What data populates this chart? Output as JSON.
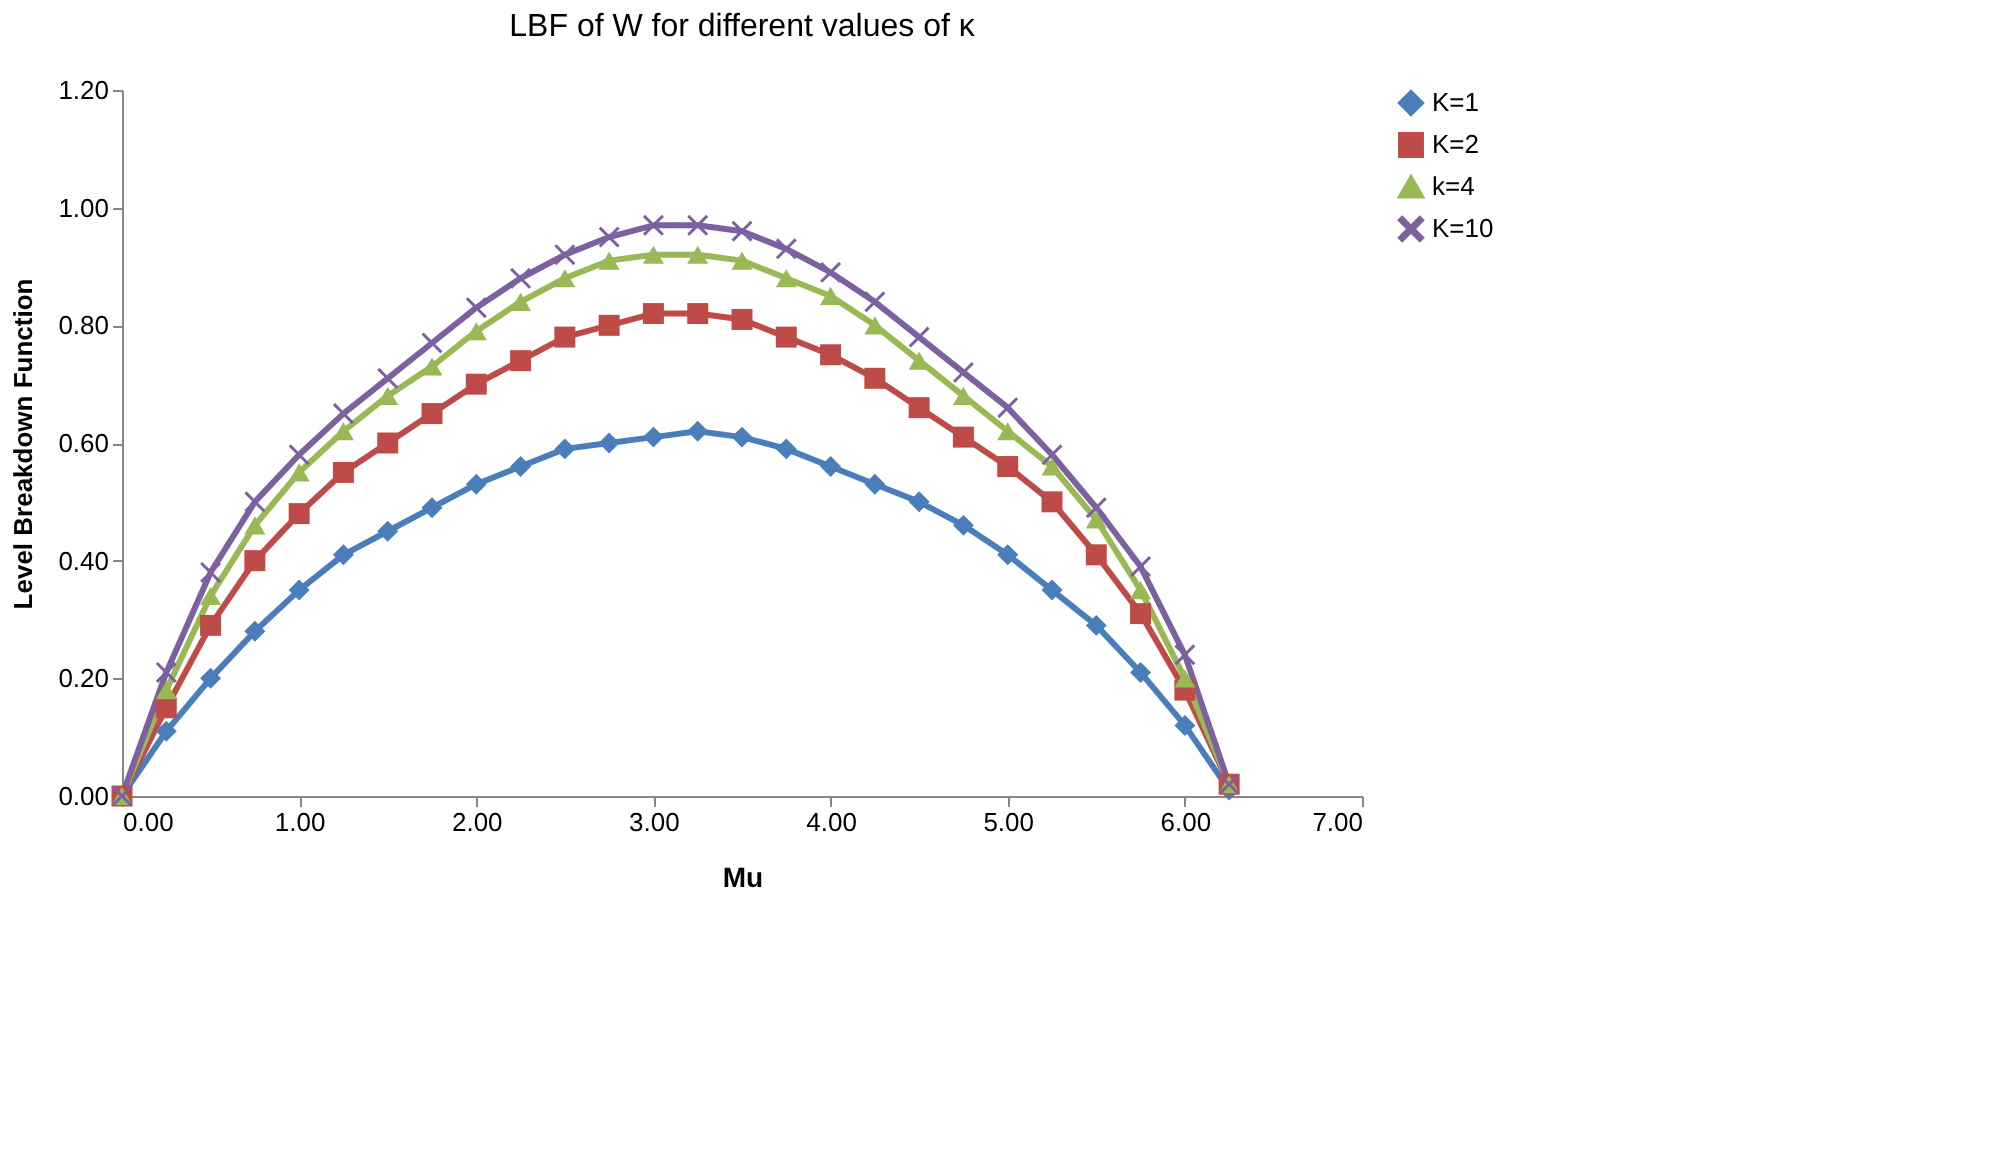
{
  "chart_data": {
    "type": "line",
    "title": "LBF of W for different values of κ",
    "xlabel": "Mu",
    "ylabel": "Level Breakdown Function",
    "x": [
      0,
      0.25,
      0.5,
      0.75,
      1.0,
      1.25,
      1.5,
      1.75,
      2.0,
      2.25,
      2.5,
      2.75,
      3.0,
      3.25,
      3.5,
      3.75,
      4.0,
      4.25,
      4.5,
      4.75,
      5.0,
      5.25,
      5.5,
      5.75,
      6.0,
      6.25
    ],
    "series": [
      {
        "name": "K=1",
        "color": "#4a7ebb",
        "marker": "diamond",
        "values": [
          0,
          0.11,
          0.2,
          0.28,
          0.35,
          0.41,
          0.45,
          0.49,
          0.53,
          0.56,
          0.59,
          0.6,
          0.61,
          0.62,
          0.61,
          0.59,
          0.56,
          0.53,
          0.5,
          0.46,
          0.41,
          0.35,
          0.29,
          0.21,
          0.12,
          0.01
        ]
      },
      {
        "name": "K=2",
        "color": "#be4b48",
        "marker": "square",
        "values": [
          0,
          0.15,
          0.29,
          0.4,
          0.48,
          0.55,
          0.6,
          0.65,
          0.7,
          0.74,
          0.78,
          0.8,
          0.82,
          0.82,
          0.81,
          0.78,
          0.75,
          0.71,
          0.66,
          0.61,
          0.56,
          0.5,
          0.41,
          0.31,
          0.18,
          0.02
        ]
      },
      {
        "name": "k=4",
        "color": "#98b954",
        "marker": "triangle",
        "values": [
          0,
          0.18,
          0.34,
          0.46,
          0.55,
          0.62,
          0.68,
          0.73,
          0.79,
          0.84,
          0.88,
          0.91,
          0.92,
          0.92,
          0.91,
          0.88,
          0.85,
          0.8,
          0.74,
          0.68,
          0.62,
          0.56,
          0.47,
          0.35,
          0.2,
          0.02
        ]
      },
      {
        "name": "K=10",
        "color": "#7d60a0",
        "marker": "cross",
        "values": [
          0,
          0.21,
          0.38,
          0.5,
          0.58,
          0.65,
          0.71,
          0.77,
          0.83,
          0.88,
          0.92,
          0.95,
          0.97,
          0.97,
          0.96,
          0.93,
          0.89,
          0.84,
          0.78,
          0.72,
          0.66,
          0.58,
          0.49,
          0.39,
          0.24,
          0.02
        ]
      }
    ],
    "xlim": [
      0,
      7
    ],
    "xticks": [
      {
        "value": 0,
        "label": "0.00"
      },
      {
        "value": 1,
        "label": "1.00"
      },
      {
        "value": 2,
        "label": "2.00"
      },
      {
        "value": 3,
        "label": "3.00"
      },
      {
        "value": 4,
        "label": "4.00"
      },
      {
        "value": 5,
        "label": "5.00"
      },
      {
        "value": 6,
        "label": "6.00"
      },
      {
        "value": 7,
        "label": "7.00"
      }
    ],
    "ylim": [
      0,
      1.2
    ],
    "yticks": [
      {
        "value": 0,
        "label": "0.00"
      },
      {
        "value": 0.2,
        "label": "0.20"
      },
      {
        "value": 0.4,
        "label": "0.40"
      },
      {
        "value": 0.6,
        "label": "0.60"
      },
      {
        "value": 0.8,
        "label": "0.80"
      },
      {
        "value": 1.0,
        "label": "1.00"
      },
      {
        "value": 1.2,
        "label": "1.20"
      }
    ],
    "legend": "right",
    "line_style": "solid"
  }
}
